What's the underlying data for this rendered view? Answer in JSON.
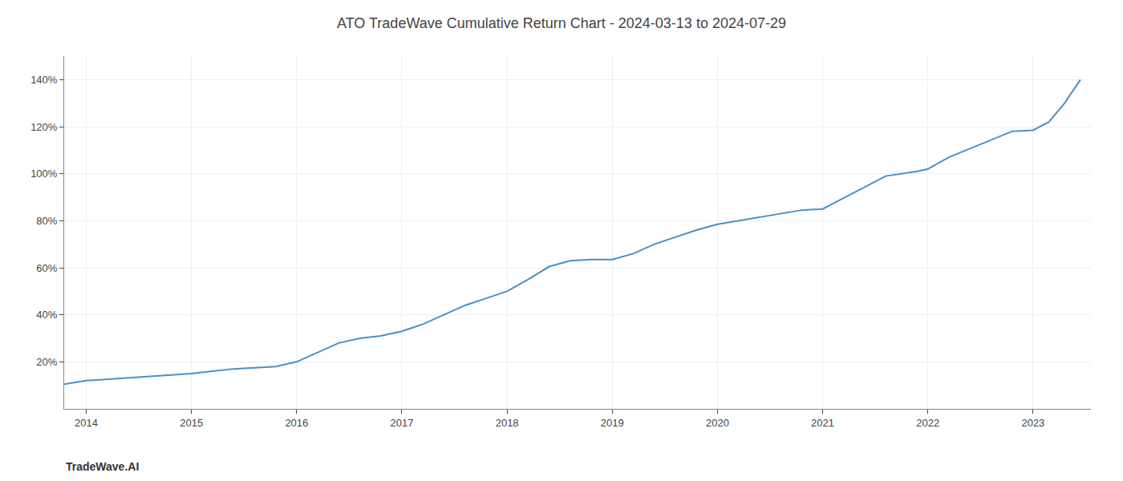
{
  "chart_data": {
    "type": "line",
    "title": "ATO TradeWave Cumulative Return Chart - 2024-03-13 to 2024-07-29",
    "annotations": [
      "TradeWave.AI"
    ],
    "color": "#4a90c4",
    "x": [
      2013.79,
      2013.87,
      2013.95,
      2014.0,
      2014.1,
      2014.2,
      2014.4,
      2014.6,
      2014.8,
      2015.0,
      2015.2,
      2015.4,
      2015.6,
      2015.8,
      2016.0,
      2016.2,
      2016.4,
      2016.6,
      2016.8,
      2017.0,
      2017.2,
      2017.4,
      2017.6,
      2017.8,
      2018.0,
      2018.2,
      2018.4,
      2018.6,
      2018.8,
      2019.0,
      2019.2,
      2019.4,
      2019.6,
      2019.8,
      2020.0,
      2020.2,
      2020.5,
      2020.8,
      2021.0,
      2021.3,
      2021.6,
      2021.9,
      2022.0,
      2022.2,
      2022.5,
      2022.8,
      2023.0,
      2023.15,
      2023.3,
      2023.45
    ],
    "values": [
      10.5,
      11.0,
      11.5,
      12.0,
      12.3,
      12.6,
      13.2,
      13.6,
      14.2,
      15.0,
      16.0,
      17.0,
      17.5,
      18.0,
      20.0,
      24.0,
      28.0,
      30.0,
      31.0,
      33.0,
      36.0,
      40.0,
      44.0,
      47.0,
      50.0,
      55.0,
      60.5,
      63.0,
      63.5,
      63.5,
      66.0,
      70.0,
      73.0,
      76.0,
      78.5,
      80.0,
      82.0,
      84.5,
      85.0,
      92.0,
      99.0,
      101.0,
      102.0,
      107.0,
      112.5,
      118.0,
      118.5,
      122.0,
      130.0,
      140.0
    ],
    "xlim": [
      2013.79,
      2023.55
    ],
    "xticks": [
      2014,
      2015,
      2016,
      2017,
      2018,
      2019,
      2020,
      2021,
      2022,
      2023
    ],
    "ylim": [
      0,
      150
    ],
    "yticks": [
      {
        "value": 20,
        "label": "20%"
      },
      {
        "value": 40,
        "label": "40%"
      },
      {
        "value": 60,
        "label": "60%"
      },
      {
        "value": 80,
        "label": "80%"
      },
      {
        "value": 100,
        "label": "100%"
      },
      {
        "value": 120,
        "label": "120%"
      },
      {
        "value": 140,
        "label": "140%"
      }
    ],
    "grid": true
  }
}
